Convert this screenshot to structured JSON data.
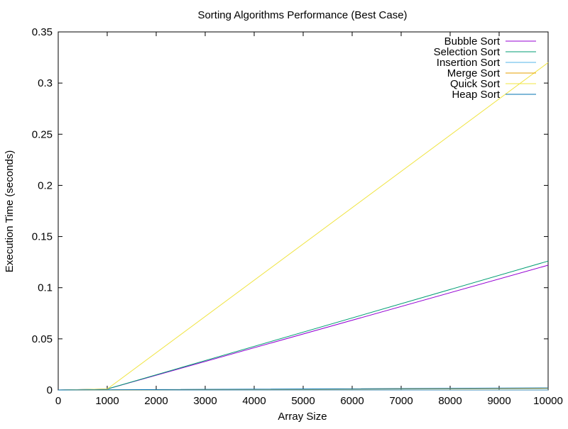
{
  "chart_data": {
    "type": "line",
    "title": "Sorting Algorithms Performance (Best Case)",
    "xlabel": "Array Size",
    "ylabel": "Execution Time (seconds)",
    "xlim": [
      0,
      10000
    ],
    "ylim": [
      0,
      0.35
    ],
    "x_ticks": [
      0,
      1000,
      2000,
      3000,
      4000,
      5000,
      6000,
      7000,
      8000,
      9000,
      10000
    ],
    "y_ticks": [
      0,
      0.05,
      0.1,
      0.15,
      0.2,
      0.25,
      0.3,
      0.35
    ],
    "x_tick_labels": [
      "0",
      "1000",
      "2000",
      "3000",
      "4000",
      "5000",
      "6000",
      "7000",
      "8000",
      "9000",
      "10000"
    ],
    "y_tick_labels": [
      "0",
      "0.05",
      "0.1",
      "0.15",
      "0.2",
      "0.25",
      "0.3",
      "0.35"
    ],
    "grid": false,
    "legend_position": "top-right",
    "x": [
      0,
      1000,
      10000
    ],
    "series": [
      {
        "name": "Bubble Sort",
        "color": "#9400d3",
        "values": [
          0,
          0.001,
          0.122
        ]
      },
      {
        "name": "Selection Sort",
        "color": "#009e73",
        "values": [
          0,
          0.001,
          0.126
        ]
      },
      {
        "name": "Insertion Sort",
        "color": "#56b4e9",
        "values": [
          0,
          0.0001,
          0.0001
        ]
      },
      {
        "name": "Merge Sort",
        "color": "#e69f00",
        "values": [
          0,
          0.0001,
          0.0015
        ]
      },
      {
        "name": "Quick Sort",
        "color": "#f0e442",
        "values": [
          0,
          0.001,
          0.32
        ]
      },
      {
        "name": "Heap Sort",
        "color": "#0072b2",
        "values": [
          0,
          0.0002,
          0.002
        ]
      }
    ]
  }
}
